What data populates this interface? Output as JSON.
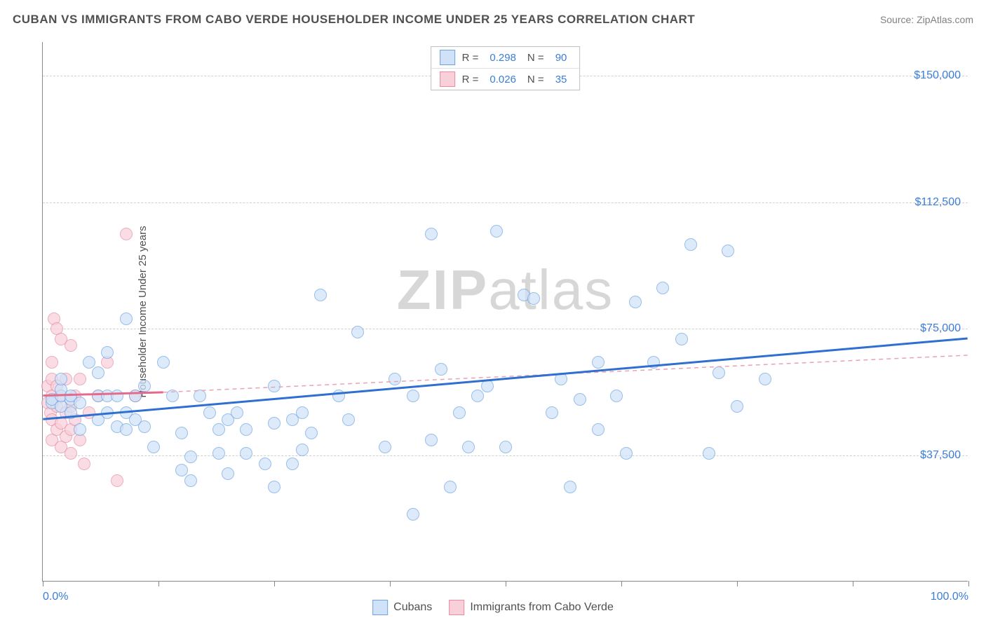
{
  "header": {
    "title": "CUBAN VS IMMIGRANTS FROM CABO VERDE HOUSEHOLDER INCOME UNDER 25 YEARS CORRELATION CHART",
    "source": "Source: ZipAtlas.com"
  },
  "chart": {
    "type": "scatter",
    "ylabel": "Householder Income Under 25 years",
    "watermark": "ZIPatlas",
    "xlim": [
      0,
      100
    ],
    "ylim": [
      0,
      160000
    ],
    "xticks": [
      0,
      12.5,
      25,
      37.5,
      50,
      62.5,
      75,
      87.5,
      100
    ],
    "xtick_labels": {
      "0": "0.0%",
      "100": "100.0%"
    },
    "yticks": [
      37500,
      75000,
      112500,
      150000
    ],
    "ytick_labels": [
      "$37,500",
      "$75,000",
      "$112,500",
      "$150,000"
    ],
    "background_color": "#ffffff",
    "grid_color": "#d0d0d0",
    "marker_radius": 9,
    "series": {
      "cubans": {
        "label": "Cubans",
        "fill": "#cfe2f8",
        "stroke": "#6ea3e0",
        "fill_opacity": 0.7,
        "stats": {
          "R": "0.298",
          "N": "90"
        },
        "trend": {
          "solid": {
            "x1": 0,
            "y1": 48000,
            "x2": 100,
            "y2": 72000,
            "color": "#2f6fd0",
            "width": 3
          },
          "dashed": null
        },
        "points": [
          [
            1,
            53000
          ],
          [
            1,
            54000
          ],
          [
            2,
            52000
          ],
          [
            2,
            55000
          ],
          [
            2,
            57000
          ],
          [
            2,
            60000
          ],
          [
            3,
            50000
          ],
          [
            3,
            54000
          ],
          [
            3,
            55000
          ],
          [
            4,
            45000
          ],
          [
            4,
            53000
          ],
          [
            5,
            65000
          ],
          [
            6,
            48000
          ],
          [
            6,
            55000
          ],
          [
            6,
            62000
          ],
          [
            7,
            50000
          ],
          [
            7,
            55000
          ],
          [
            7,
            68000
          ],
          [
            8,
            46000
          ],
          [
            8,
            55000
          ],
          [
            9,
            45000
          ],
          [
            9,
            50000
          ],
          [
            9,
            78000
          ],
          [
            10,
            48000
          ],
          [
            10,
            55000
          ],
          [
            11,
            46000
          ],
          [
            11,
            58000
          ],
          [
            12,
            40000
          ],
          [
            13,
            65000
          ],
          [
            14,
            55000
          ],
          [
            15,
            44000
          ],
          [
            15,
            33000
          ],
          [
            16,
            37000
          ],
          [
            16,
            30000
          ],
          [
            17,
            55000
          ],
          [
            18,
            50000
          ],
          [
            19,
            45000
          ],
          [
            19,
            38000
          ],
          [
            20,
            32000
          ],
          [
            20,
            48000
          ],
          [
            21,
            50000
          ],
          [
            22,
            45000
          ],
          [
            22,
            38000
          ],
          [
            24,
            35000
          ],
          [
            25,
            47000
          ],
          [
            25,
            58000
          ],
          [
            25,
            28000
          ],
          [
            27,
            35000
          ],
          [
            27,
            48000
          ],
          [
            28,
            50000
          ],
          [
            28,
            39000
          ],
          [
            29,
            44000
          ],
          [
            30,
            85000
          ],
          [
            32,
            55000
          ],
          [
            33,
            48000
          ],
          [
            34,
            74000
          ],
          [
            37,
            40000
          ],
          [
            38,
            60000
          ],
          [
            40,
            20000
          ],
          [
            40,
            55000
          ],
          [
            42,
            42000
          ],
          [
            42,
            103000
          ],
          [
            43,
            63000
          ],
          [
            44,
            28000
          ],
          [
            45,
            50000
          ],
          [
            46,
            40000
          ],
          [
            47,
            55000
          ],
          [
            48,
            58000
          ],
          [
            49,
            104000
          ],
          [
            50,
            40000
          ],
          [
            52,
            85000
          ],
          [
            53,
            84000
          ],
          [
            55,
            50000
          ],
          [
            56,
            60000
          ],
          [
            57,
            28000
          ],
          [
            58,
            54000
          ],
          [
            60,
            45000
          ],
          [
            60,
            65000
          ],
          [
            62,
            55000
          ],
          [
            63,
            38000
          ],
          [
            64,
            83000
          ],
          [
            66,
            65000
          ],
          [
            67,
            87000
          ],
          [
            69,
            72000
          ],
          [
            70,
            100000
          ],
          [
            72,
            38000
          ],
          [
            73,
            62000
          ],
          [
            74,
            98000
          ],
          [
            75,
            52000
          ],
          [
            78,
            60000
          ]
        ]
      },
      "cabo": {
        "label": "Immigrants from Cabo Verde",
        "fill": "#f8d0da",
        "stroke": "#e88ba3",
        "fill_opacity": 0.7,
        "stats": {
          "R": "0.026",
          "N": "35"
        },
        "trend": {
          "solid": {
            "x1": 0,
            "y1": 55000,
            "x2": 13,
            "y2": 56000,
            "color": "#e56b8c",
            "width": 3
          },
          "dashed": {
            "x1": 13,
            "y1": 56000,
            "x2": 100,
            "y2": 67000,
            "color": "#e8a3b5",
            "width": 1.5
          }
        },
        "points": [
          [
            0.5,
            53000
          ],
          [
            0.5,
            58000
          ],
          [
            0.8,
            50000
          ],
          [
            1,
            42000
          ],
          [
            1,
            48000
          ],
          [
            1,
            55000
          ],
          [
            1,
            60000
          ],
          [
            1,
            65000
          ],
          [
            1.2,
            78000
          ],
          [
            1.5,
            45000
          ],
          [
            1.5,
            52000
          ],
          [
            1.5,
            58000
          ],
          [
            1.5,
            75000
          ],
          [
            2,
            40000
          ],
          [
            2,
            47000
          ],
          [
            2,
            55000
          ],
          [
            2,
            72000
          ],
          [
            2.5,
            43000
          ],
          [
            2.5,
            50000
          ],
          [
            2.5,
            60000
          ],
          [
            3,
            38000
          ],
          [
            3,
            45000
          ],
          [
            3,
            52000
          ],
          [
            3,
            70000
          ],
          [
            3.5,
            48000
          ],
          [
            3.5,
            55000
          ],
          [
            4,
            42000
          ],
          [
            4,
            60000
          ],
          [
            4.5,
            35000
          ],
          [
            5,
            50000
          ],
          [
            6,
            55000
          ],
          [
            7,
            65000
          ],
          [
            8,
            30000
          ],
          [
            9,
            103000
          ],
          [
            10,
            55000
          ]
        ]
      }
    }
  },
  "stats_legend": {
    "r_label": "R =",
    "n_label": "N ="
  }
}
